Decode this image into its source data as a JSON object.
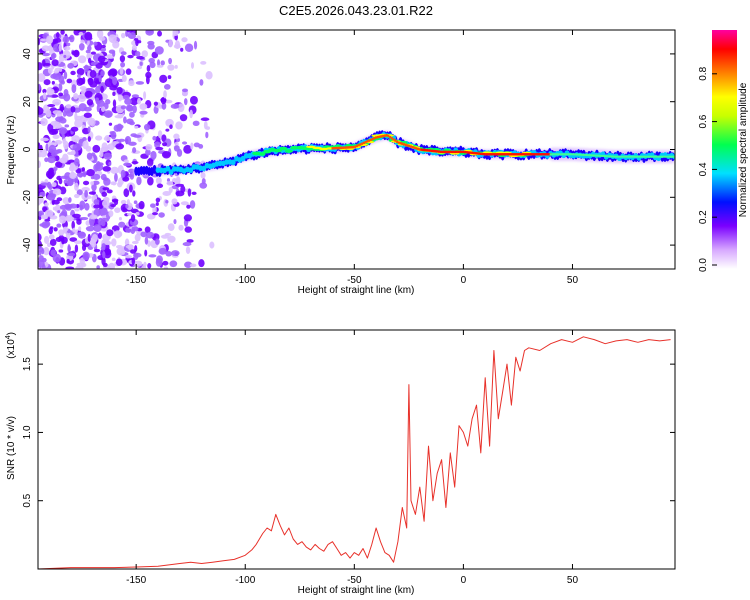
{
  "chart_data": [
    {
      "type": "heatmap",
      "title": "C2E5.2026.043.23.01.R22",
      "xlabel": "Height of straight line (km)",
      "ylabel": "Frequency (Hz)",
      "xlim": [
        -195,
        97
      ],
      "ylim": [
        -50,
        50
      ],
      "xticks": [
        -150,
        -100,
        -50,
        0,
        50
      ],
      "yticks": [
        -40,
        -20,
        0,
        20,
        40
      ],
      "colorbar": {
        "label": "Normalized spectral amplitude",
        "ticks": [
          "0.0",
          "0.2",
          "0.4",
          "0.6",
          "0.8"
        ],
        "range": [
          0,
          1
        ],
        "colormap": [
          "#ffffff",
          "#c080ff",
          "#6000ff",
          "#0000ff",
          "#00e0ff",
          "#00ff40",
          "#ffff00",
          "#ff7000",
          "#ff0000",
          "#ff00a0"
        ]
      },
      "ridge": {
        "x": [
          -150,
          -140,
          -130,
          -120,
          -110,
          -100,
          -90,
          -80,
          -70,
          -60,
          -50,
          -40,
          -35,
          -30,
          -20,
          -10,
          0,
          10,
          20,
          30,
          40,
          50,
          60,
          70,
          80,
          95
        ],
        "y": [
          -9,
          -9,
          -8.5,
          -7.5,
          -6,
          -3,
          -1,
          0,
          0.5,
          0.5,
          1,
          5,
          6,
          3,
          0,
          -1,
          -1,
          -2,
          -2,
          -2,
          -2,
          -2,
          -2.5,
          -3,
          -3,
          -3
        ]
      },
      "noise_region_x": [
        -195,
        -115
      ]
    },
    {
      "type": "line",
      "xlabel": "Height of straight line (km)",
      "ylabel": "SNR (10 * v/v)",
      "y_multiplier": "(x10^4)",
      "xlim": [
        -195,
        97
      ],
      "ylim": [
        0,
        1.75
      ],
      "xticks": [
        -150,
        -100,
        -50,
        0,
        50
      ],
      "yticks": [
        0.5,
        1.0,
        1.5
      ],
      "series": [
        {
          "color": "#e8312a",
          "x": [
            -195,
            -180,
            -160,
            -150,
            -140,
            -130,
            -125,
            -120,
            -115,
            -110,
            -105,
            -100,
            -97,
            -95,
            -92,
            -90,
            -88,
            -86,
            -84,
            -82,
            -80,
            -78,
            -76,
            -74,
            -72,
            -70,
            -68,
            -66,
            -64,
            -62,
            -60,
            -58,
            -56,
            -54,
            -52,
            -50,
            -48,
            -46,
            -44,
            -42,
            -40,
            -38,
            -36,
            -34,
            -32,
            -30,
            -28,
            -26,
            -25,
            -24,
            -22,
            -20,
            -18,
            -16,
            -14,
            -12,
            -10,
            -8,
            -6,
            -4,
            -2,
            0,
            2,
            4,
            6,
            8,
            10,
            12,
            14,
            16,
            18,
            20,
            22,
            24,
            26,
            28,
            30,
            35,
            40,
            45,
            50,
            55,
            60,
            65,
            70,
            75,
            80,
            85,
            90,
            95
          ],
          "y": [
            0.0,
            0.01,
            0.01,
            0.015,
            0.02,
            0.04,
            0.05,
            0.04,
            0.05,
            0.06,
            0.07,
            0.1,
            0.14,
            0.18,
            0.26,
            0.3,
            0.28,
            0.4,
            0.32,
            0.25,
            0.3,
            0.22,
            0.18,
            0.2,
            0.16,
            0.14,
            0.18,
            0.15,
            0.13,
            0.18,
            0.2,
            0.15,
            0.1,
            0.12,
            0.08,
            0.12,
            0.1,
            0.15,
            0.08,
            0.18,
            0.3,
            0.2,
            0.12,
            0.1,
            0.05,
            0.2,
            0.45,
            0.3,
            1.35,
            0.5,
            0.4,
            0.6,
            0.35,
            0.9,
            0.5,
            0.7,
            0.8,
            0.45,
            0.85,
            0.6,
            1.05,
            1.0,
            0.9,
            1.1,
            1.2,
            0.85,
            1.4,
            0.9,
            1.6,
            1.1,
            1.3,
            1.5,
            1.2,
            1.55,
            1.45,
            1.6,
            1.62,
            1.6,
            1.65,
            1.68,
            1.66,
            1.7,
            1.68,
            1.65,
            1.67,
            1.68,
            1.66,
            1.68,
            1.67,
            1.68
          ]
        }
      ]
    }
  ]
}
